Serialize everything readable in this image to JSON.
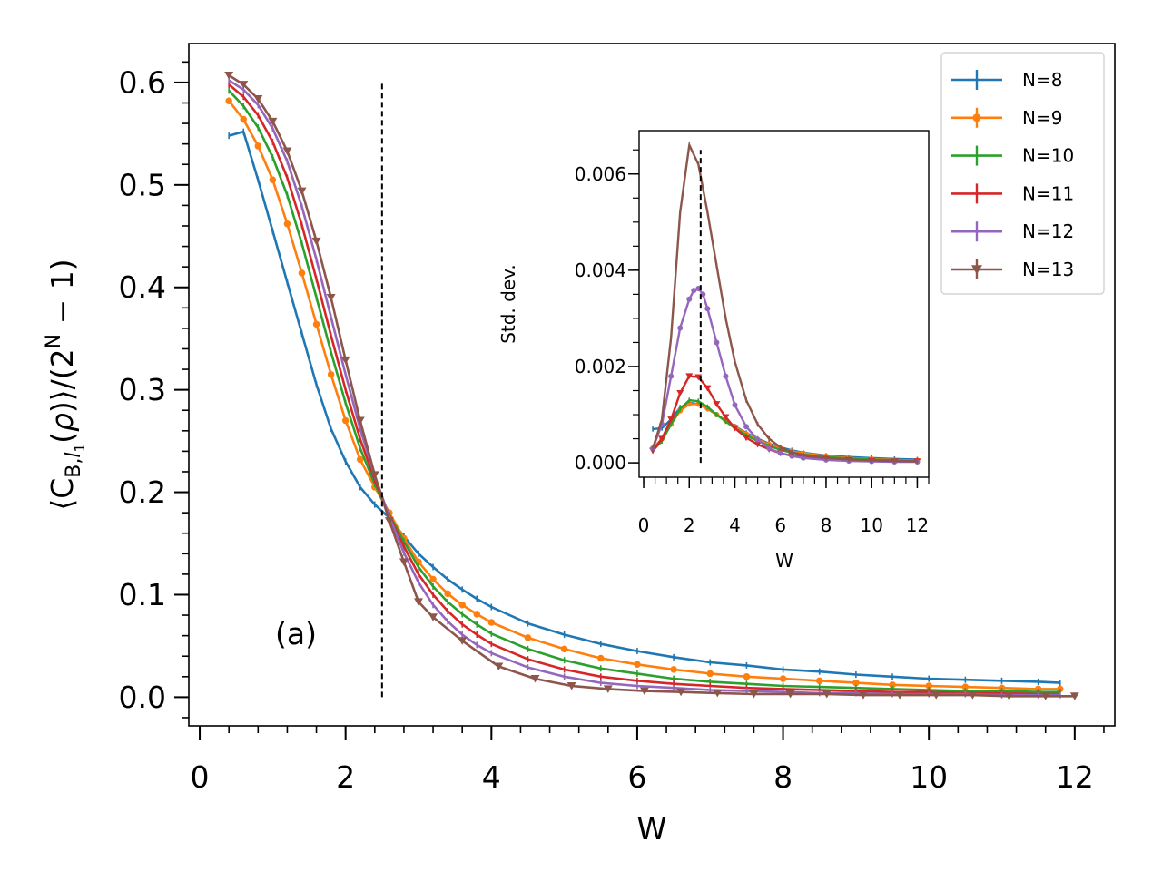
{
  "chart_data": [
    {
      "id": "main",
      "type": "line",
      "xlabel": "W",
      "ylabel": "⟨C_{B,l₁}(ρ)⟩/(2^N − 1)",
      "xlim": [
        -0.15,
        12.55
      ],
      "ylim": [
        -0.028,
        0.638
      ],
      "xticks": [
        0,
        2,
        4,
        6,
        8,
        10,
        12
      ],
      "xtick_labels": [
        "0",
        "2",
        "4",
        "6",
        "8",
        "10",
        "12"
      ],
      "yticks": [
        0.0,
        0.1,
        0.2,
        0.3,
        0.4,
        0.5,
        0.6
      ],
      "ytick_labels": [
        "0.0",
        "0.1",
        "0.2",
        "0.3",
        "0.4",
        "0.5",
        "0.6"
      ],
      "vline": 2.5,
      "vline_range": [
        0.0,
        0.6
      ],
      "annotation": "(a)",
      "series": [
        {
          "name": "N=8",
          "color": "#1f77b4",
          "marker": "tick",
          "x": [
            0.4,
            0.6,
            0.8,
            1.0,
            1.2,
            1.4,
            1.6,
            1.8,
            2.0,
            2.2,
            2.4,
            2.6,
            2.8,
            3.0,
            3.2,
            3.4,
            3.6,
            3.8,
            4.0,
            4.5,
            5.0,
            5.5,
            6.0,
            6.5,
            7.0,
            7.5,
            8.0,
            8.5,
            9.0,
            9.5,
            10.0,
            10.5,
            11.0,
            11.5,
            11.8
          ],
          "y": [
            0.548,
            0.552,
            0.505,
            0.455,
            0.405,
            0.355,
            0.305,
            0.262,
            0.23,
            0.205,
            0.188,
            0.175,
            0.157,
            0.14,
            0.127,
            0.115,
            0.105,
            0.096,
            0.088,
            0.072,
            0.061,
            0.052,
            0.045,
            0.039,
            0.034,
            0.031,
            0.027,
            0.025,
            0.022,
            0.02,
            0.018,
            0.017,
            0.016,
            0.015,
            0.014
          ]
        },
        {
          "name": "N=9",
          "color": "#ff7f0e",
          "marker": "circle",
          "x": [
            0.4,
            0.6,
            0.8,
            1.0,
            1.2,
            1.4,
            1.6,
            1.8,
            2.0,
            2.2,
            2.4,
            2.6,
            2.8,
            3.0,
            3.2,
            3.4,
            3.6,
            3.8,
            4.0,
            4.5,
            5.0,
            5.5,
            6.0,
            6.5,
            7.0,
            7.5,
            8.0,
            8.5,
            9.0,
            9.5,
            10.0,
            10.5,
            11.0,
            11.5,
            11.8
          ],
          "y": [
            0.582,
            0.564,
            0.538,
            0.505,
            0.462,
            0.414,
            0.364,
            0.315,
            0.27,
            0.232,
            0.205,
            0.18,
            0.155,
            0.132,
            0.115,
            0.101,
            0.09,
            0.081,
            0.073,
            0.058,
            0.047,
            0.038,
            0.032,
            0.027,
            0.023,
            0.02,
            0.018,
            0.016,
            0.014,
            0.012,
            0.011,
            0.01,
            0.009,
            0.008,
            0.008
          ]
        },
        {
          "name": "N=10",
          "color": "#2ca02c",
          "marker": "tick",
          "x": [
            0.4,
            0.6,
            0.8,
            1.0,
            1.2,
            1.4,
            1.6,
            1.8,
            2.0,
            2.2,
            2.4,
            2.6,
            2.8,
            3.0,
            3.2,
            3.4,
            3.6,
            3.8,
            4.0,
            4.5,
            5.0,
            5.5,
            6.0,
            6.5,
            7.0,
            7.5,
            8.0,
            8.5,
            9.0,
            9.5,
            10.0,
            10.5,
            11.0,
            11.5,
            11.8
          ],
          "y": [
            0.592,
            0.577,
            0.556,
            0.527,
            0.49,
            0.443,
            0.39,
            0.337,
            0.287,
            0.243,
            0.208,
            0.178,
            0.152,
            0.127,
            0.108,
            0.093,
            0.081,
            0.071,
            0.062,
            0.047,
            0.036,
            0.028,
            0.023,
            0.018,
            0.015,
            0.013,
            0.011,
            0.01,
            0.009,
            0.008,
            0.007,
            0.006,
            0.006,
            0.005,
            0.005
          ]
        },
        {
          "name": "N=11",
          "color": "#d62728",
          "marker": "tick",
          "x": [
            0.4,
            0.6,
            0.8,
            1.0,
            1.2,
            1.4,
            1.6,
            1.8,
            2.0,
            2.2,
            2.4,
            2.6,
            2.8,
            3.0,
            3.2,
            3.4,
            3.6,
            3.8,
            4.0,
            4.5,
            5.0,
            5.5,
            6.0,
            6.5,
            7.0,
            7.5,
            8.0,
            8.5,
            9.0,
            9.5,
            10.0,
            10.5,
            11.0,
            11.5,
            11.8
          ],
          "y": [
            0.598,
            0.586,
            0.568,
            0.542,
            0.507,
            0.461,
            0.408,
            0.353,
            0.3,
            0.252,
            0.212,
            0.177,
            0.147,
            0.12,
            0.1,
            0.084,
            0.071,
            0.061,
            0.052,
            0.037,
            0.027,
            0.02,
            0.016,
            0.013,
            0.011,
            0.009,
            0.008,
            0.007,
            0.006,
            0.005,
            0.005,
            0.004,
            0.004,
            0.003,
            0.003
          ]
        },
        {
          "name": "N=12",
          "color": "#9467bd",
          "marker": "tick",
          "x": [
            0.4,
            0.6,
            0.8,
            1.0,
            1.2,
            1.4,
            1.6,
            1.8,
            2.0,
            2.2,
            2.4,
            2.6,
            2.8,
            3.0,
            3.2,
            3.4,
            3.6,
            3.8,
            4.0,
            4.5,
            5.0,
            5.5,
            6.0,
            6.5,
            7.0,
            7.5,
            8.0,
            8.5,
            9.0,
            9.5,
            10.0,
            10.5,
            11.0,
            11.5,
            11.8
          ],
          "y": [
            0.602,
            0.593,
            0.578,
            0.555,
            0.523,
            0.479,
            0.427,
            0.371,
            0.315,
            0.262,
            0.216,
            0.176,
            0.141,
            0.112,
            0.09,
            0.074,
            0.061,
            0.051,
            0.043,
            0.029,
            0.02,
            0.014,
            0.011,
            0.009,
            0.007,
            0.006,
            0.005,
            0.004,
            0.004,
            0.003,
            0.003,
            0.003,
            0.002,
            0.002,
            0.002
          ]
        },
        {
          "name": "N=13",
          "color": "#8c564b",
          "marker": "triangle-down",
          "x": [
            0.4,
            0.6,
            0.8,
            1.0,
            1.2,
            1.4,
            1.6,
            1.8,
            2.0,
            2.2,
            2.4,
            2.6,
            2.8,
            3.0,
            3.2,
            3.6,
            4.1,
            4.6,
            5.1,
            5.6,
            6.1,
            6.6,
            7.1,
            7.6,
            8.1,
            8.6,
            9.1,
            9.6,
            10.1,
            10.6,
            11.1,
            11.6,
            12.0
          ],
          "y": [
            0.607,
            0.598,
            0.584,
            0.562,
            0.533,
            0.494,
            0.445,
            0.39,
            0.329,
            0.27,
            0.217,
            0.172,
            0.132,
            0.093,
            0.078,
            0.055,
            0.03,
            0.018,
            0.011,
            0.008,
            0.006,
            0.005,
            0.004,
            0.003,
            0.003,
            0.003,
            0.002,
            0.002,
            0.002,
            0.002,
            0.001,
            0.001,
            0.001
          ]
        }
      ]
    },
    {
      "id": "inset",
      "type": "line",
      "xlabel": "W",
      "ylabel": "Std. dev.",
      "xlim": [
        -0.2,
        12.5
      ],
      "ylim": [
        -0.0003,
        0.0069
      ],
      "xticks": [
        0,
        2,
        4,
        6,
        8,
        10,
        12
      ],
      "xtick_labels": [
        "0",
        "2",
        "4",
        "6",
        "8",
        "10",
        "12"
      ],
      "yticks": [
        0.0,
        0.002,
        0.004,
        0.006
      ],
      "ytick_labels": [
        "0.000",
        "0.002",
        "0.004",
        "0.006"
      ],
      "vline": 2.5,
      "vline_range": [
        0.0,
        0.0065
      ],
      "series": [
        {
          "name": "N=8",
          "color": "#1f77b4",
          "marker": "tick",
          "x": [
            0.4,
            0.8,
            1.2,
            1.6,
            2.0,
            2.4,
            2.8,
            3.2,
            3.6,
            4.0,
            4.5,
            5.0,
            5.5,
            6.0,
            6.5,
            7.0,
            8.0,
            9.0,
            10.0,
            11.0,
            12.0
          ],
          "y": [
            0.0007,
            0.00072,
            0.0009,
            0.00115,
            0.00125,
            0.00122,
            0.00112,
            0.001,
            0.00088,
            0.00076,
            0.00062,
            0.0005,
            0.0004,
            0.00032,
            0.00026,
            0.00021,
            0.00015,
            0.00012,
            0.0001,
            8e-05,
            7e-05
          ]
        },
        {
          "name": "N=9",
          "color": "#ff7f0e",
          "marker": "circle",
          "x": [
            0.4,
            0.8,
            1.2,
            1.6,
            2.0,
            2.4,
            2.8,
            3.2,
            3.6,
            4.0,
            4.5,
            5.0,
            5.5,
            6.0,
            6.5,
            7.0,
            8.0,
            9.0,
            10.0,
            11.0,
            12.0
          ],
          "y": [
            0.0003,
            0.0005,
            0.0008,
            0.00108,
            0.00122,
            0.00122,
            0.00113,
            0.001,
            0.00088,
            0.00075,
            0.0006,
            0.00048,
            0.00038,
            0.0003,
            0.00024,
            0.0002,
            0.00014,
            0.0001,
            8e-05,
            6e-05,
            5e-05
          ]
        },
        {
          "name": "N=10",
          "color": "#2ca02c",
          "marker": "tick",
          "x": [
            0.4,
            0.8,
            1.2,
            1.6,
            2.0,
            2.4,
            2.8,
            3.2,
            3.6,
            4.0,
            4.5,
            5.0,
            5.5,
            6.0,
            6.5,
            7.0,
            8.0,
            9.0,
            10.0,
            11.0,
            12.0
          ],
          "y": [
            0.00025,
            0.00045,
            0.0008,
            0.00112,
            0.0013,
            0.00128,
            0.00116,
            0.001,
            0.00086,
            0.00072,
            0.00057,
            0.00045,
            0.00035,
            0.00027,
            0.00021,
            0.00017,
            0.00012,
            9e-05,
            7e-05,
            5e-05,
            4e-05
          ]
        },
        {
          "name": "N=11",
          "color": "#d62728",
          "marker": "triangle-down",
          "x": [
            0.4,
            0.8,
            1.2,
            1.6,
            2.0,
            2.4,
            2.8,
            3.2,
            3.6,
            4.0,
            4.5,
            5.0,
            5.5,
            6.0,
            6.5,
            7.0,
            8.0,
            9.0,
            10.0,
            11.0,
            12.0
          ],
          "y": [
            0.00025,
            0.0005,
            0.0009,
            0.00145,
            0.0018,
            0.00178,
            0.00155,
            0.00122,
            0.00095,
            0.00072,
            0.00052,
            0.00038,
            0.00028,
            0.0002,
            0.00015,
            0.00012,
            8e-05,
            6e-05,
            4e-05,
            3e-05,
            3e-05
          ]
        },
        {
          "name": "N=12",
          "color": "#9467bd",
          "marker": "circle",
          "x": [
            0.4,
            0.8,
            1.2,
            1.6,
            2.0,
            2.2,
            2.4,
            2.6,
            2.8,
            3.2,
            3.6,
            4.0,
            4.5,
            5.0,
            5.5,
            6.0,
            6.5,
            7.0,
            8.0,
            9.0,
            10.0,
            11.0,
            12.0
          ],
          "y": [
            0.0003,
            0.0008,
            0.0018,
            0.0028,
            0.0034,
            0.00358,
            0.00362,
            0.0035,
            0.0032,
            0.0025,
            0.0018,
            0.0012,
            0.00075,
            0.00048,
            0.0003,
            0.0002,
            0.00014,
            0.0001,
            6e-05,
            4e-05,
            3e-05,
            2e-05,
            2e-05
          ]
        },
        {
          "name": "N=13",
          "color": "#8c564b",
          "marker": "tick",
          "x": [
            0.4,
            0.8,
            1.2,
            1.6,
            2.0,
            2.4,
            2.8,
            3.2,
            3.6,
            4.0,
            4.5,
            5.0,
            5.5,
            6.0,
            6.5,
            7.0,
            8.0,
            9.0,
            10.0,
            11.0,
            12.0
          ],
          "y": [
            0.0003,
            0.0009,
            0.0026,
            0.0052,
            0.0066,
            0.0062,
            0.0052,
            0.0041,
            0.003,
            0.0021,
            0.0013,
            0.0008,
            0.0005,
            0.00032,
            0.00022,
            0.00016,
            0.0001,
            7e-05,
            5e-05,
            4e-05,
            3e-05
          ]
        }
      ]
    }
  ],
  "legend": {
    "placement": "top-right",
    "entries": [
      "N=8",
      "N=9",
      "N=10",
      "N=11",
      "N=12",
      "N=13"
    ]
  }
}
